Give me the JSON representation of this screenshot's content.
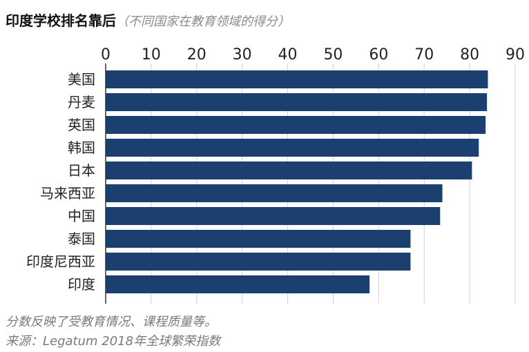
{
  "title": "印度学校排名靠后",
  "subtitle": "（不同国家在教育领域的得分）",
  "note": "分数反映了受教育情况、课程质量等。",
  "source": "来源：Legatum 2018年全球繁荣指数",
  "colors": {
    "bar": "#1b3f6e",
    "grid": "#d0d0d0",
    "axis": "#333333"
  },
  "chart_data": {
    "type": "bar",
    "orientation": "horizontal",
    "title": "印度学校排名靠后",
    "subtitle": "（不同国家在教育领域的得分）",
    "categories": [
      "美国",
      "丹麦",
      "英国",
      "韩国",
      "日本",
      "马来西亚",
      "中国",
      "泰国",
      "印度尼西亚",
      "印度"
    ],
    "values": [
      84,
      83.8,
      83.5,
      82,
      80.5,
      74,
      73.5,
      67,
      67,
      58
    ],
    "xlim": [
      0,
      90
    ],
    "xticks": [
      0,
      10,
      20,
      30,
      40,
      50,
      60,
      70,
      80,
      90
    ],
    "xaxis_position": "top",
    "grid": true,
    "legend": "none"
  }
}
